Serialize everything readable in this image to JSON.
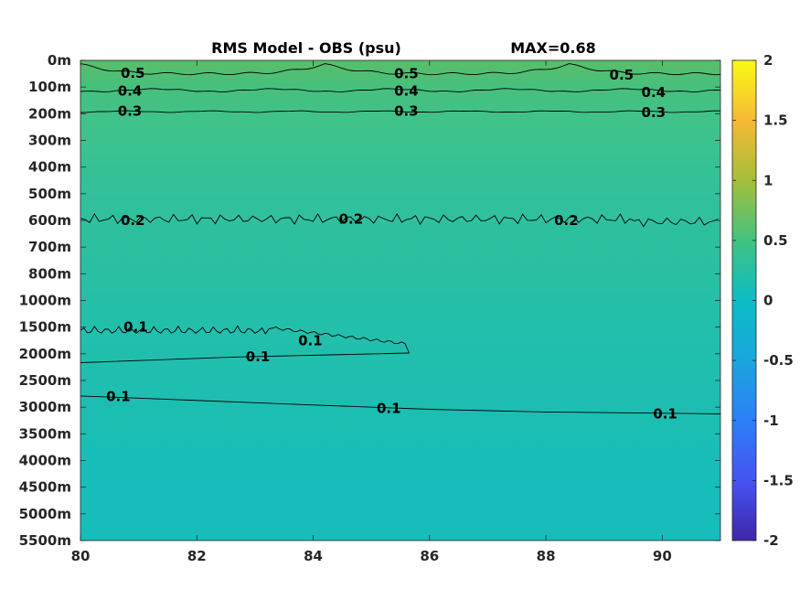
{
  "chart_data": {
    "type": "heatmap",
    "title": "RMS Model - OBS (psu)",
    "annotation": "MAX=0.68",
    "xlabel": "",
    "ylabel": "",
    "xlim": [
      80,
      91
    ],
    "x_ticks": [
      80,
      82,
      84,
      86,
      88,
      90
    ],
    "y_tick_labels": [
      "0m",
      "100m",
      "200m",
      "300m",
      "400m",
      "500m",
      "600m",
      "700m",
      "800m",
      "1000m",
      "1500m",
      "2000m",
      "2500m",
      "3000m",
      "3500m",
      "4000m",
      "4500m",
      "5000m",
      "5500m"
    ],
    "colorbar": {
      "range": [
        -2,
        2
      ],
      "ticks": [
        2,
        1.5,
        1,
        0.5,
        0,
        -0.5,
        -1,
        -1.5,
        -2
      ],
      "tick_labels": [
        "2",
        "1.5",
        "1",
        "0.5",
        "0",
        "-0.5",
        "-1",
        "-1.5",
        "-2"
      ],
      "colormap": "parula"
    },
    "field_by_depth": [
      {
        "depth": "0m",
        "value": 0.6
      },
      {
        "depth": "100m",
        "value": 0.45
      },
      {
        "depth": "200m",
        "value": 0.32
      },
      {
        "depth": "300m",
        "value": 0.27
      },
      {
        "depth": "600m",
        "value": 0.2
      },
      {
        "depth": "1000m",
        "value": 0.14
      },
      {
        "depth": "2000m",
        "value": 0.1
      },
      {
        "depth": "3000m",
        "value": 0.1
      },
      {
        "depth": "4000m",
        "value": 0.04
      },
      {
        "depth": "5500m",
        "value": 0.03
      }
    ],
    "contours": [
      {
        "level": 0.5,
        "label": "0.5"
      },
      {
        "level": 0.4,
        "label": "0.4"
      },
      {
        "level": 0.3,
        "label": "0.3"
      },
      {
        "level": 0.2,
        "label": "0.2"
      },
      {
        "level": 0.1,
        "label": "0.1"
      }
    ],
    "contour_labels": [
      {
        "text": "0.5",
        "x": 80.9,
        "depth_index": 0.48
      },
      {
        "text": "0.5",
        "x": 85.6,
        "depth_index": 0.5
      },
      {
        "text": "0.5",
        "x": 89.3,
        "depth_index": 0.55
      },
      {
        "text": "0.4",
        "x": 80.85,
        "depth_index": 1.15
      },
      {
        "text": "0.4",
        "x": 85.6,
        "depth_index": 1.15
      },
      {
        "text": "0.4",
        "x": 89.85,
        "depth_index": 1.2
      },
      {
        "text": "0.3",
        "x": 80.85,
        "depth_index": 1.9
      },
      {
        "text": "0.3",
        "x": 85.6,
        "depth_index": 1.9
      },
      {
        "text": "0.3",
        "x": 89.85,
        "depth_index": 1.95
      },
      {
        "text": "0.2",
        "x": 80.9,
        "depth_index": 6.0
      },
      {
        "text": "0.2",
        "x": 84.65,
        "depth_index": 5.95
      },
      {
        "text": "0.2",
        "x": 88.35,
        "depth_index": 6.0
      },
      {
        "text": "0.1",
        "x": 80.95,
        "depth_index": 10.0
      },
      {
        "text": "0.1",
        "x": 83.95,
        "depth_index": 10.5
      },
      {
        "text": "0.1",
        "x": 83.05,
        "depth_index": 11.1
      },
      {
        "text": "0.1",
        "x": 80.65,
        "depth_index": 12.6
      },
      {
        "text": "0.1",
        "x": 85.3,
        "depth_index": 13.05
      },
      {
        "text": "0.1",
        "x": 90.05,
        "depth_index": 13.25
      }
    ]
  }
}
